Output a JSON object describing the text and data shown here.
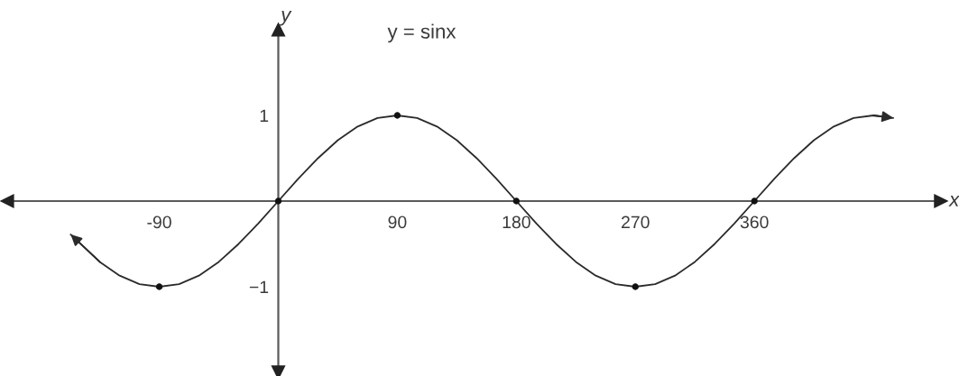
{
  "chart_data": {
    "type": "line",
    "title": "y = sinx",
    "xlabel": "x",
    "ylabel": "y",
    "series": [
      {
        "color": "#2b2b2b",
        "x": [
          -157,
          -135,
          -120,
          -105,
          -90,
          -75,
          -60,
          -45,
          -30,
          -15,
          0,
          15,
          30,
          45,
          60,
          75,
          90,
          105,
          120,
          135,
          150,
          165,
          180,
          195,
          210,
          225,
          240,
          255,
          270,
          285,
          300,
          315,
          330,
          345,
          360,
          375,
          390,
          405,
          420,
          435,
          450,
          465
        ],
        "values": [
          -0.39,
          -0.71,
          -0.87,
          -0.97,
          -1,
          -0.97,
          -0.87,
          -0.71,
          -0.5,
          -0.26,
          0,
          0.26,
          0.5,
          0.71,
          0.87,
          0.97,
          1,
          0.97,
          0.87,
          0.71,
          0.5,
          0.26,
          0,
          -0.26,
          -0.5,
          -0.71,
          -0.87,
          -0.97,
          -1,
          -0.97,
          -0.87,
          -0.71,
          -0.5,
          -0.26,
          0,
          0.26,
          0.5,
          0.71,
          0.87,
          0.97,
          1,
          0.97
        ]
      },
      {
        "type": "scatter",
        "color": "#111111",
        "marker": "circle",
        "x": [
          -90,
          0,
          90,
          180,
          270,
          360
        ],
        "values": [
          -1,
          0,
          1,
          0,
          -1,
          0
        ]
      }
    ],
    "xlim": [
      -205,
      501
    ],
    "ylim": [
      -2,
      2
    ],
    "xticks": [
      -90,
      90,
      180,
      270,
      360
    ],
    "yticks": [
      1,
      {
        "value": -1,
        "label": "−1"
      }
    ]
  }
}
